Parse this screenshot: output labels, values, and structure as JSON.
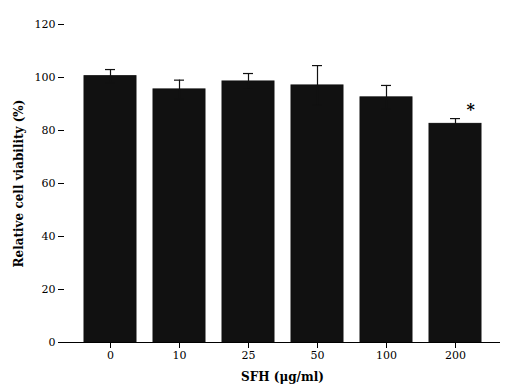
{
  "chart_data": {
    "type": "bar",
    "categories": [
      "0",
      "10",
      "25",
      "50",
      "100",
      "200"
    ],
    "values": [
      100.5,
      95.5,
      98.5,
      97.0,
      92.5,
      82.5
    ],
    "errors": [
      2.5,
      3.5,
      3.0,
      7.5,
      4.5,
      2.0
    ],
    "color": "#111111",
    "xlabel": "SFH (μg/ml)",
    "ylabel": "Relative cell viability (%)",
    "ylim": [
      0,
      120
    ],
    "yticks": [
      0,
      20,
      40,
      60,
      80,
      100,
      120
    ],
    "grid": false,
    "annotations": [
      {
        "text": "*",
        "category": "200"
      }
    ]
  }
}
